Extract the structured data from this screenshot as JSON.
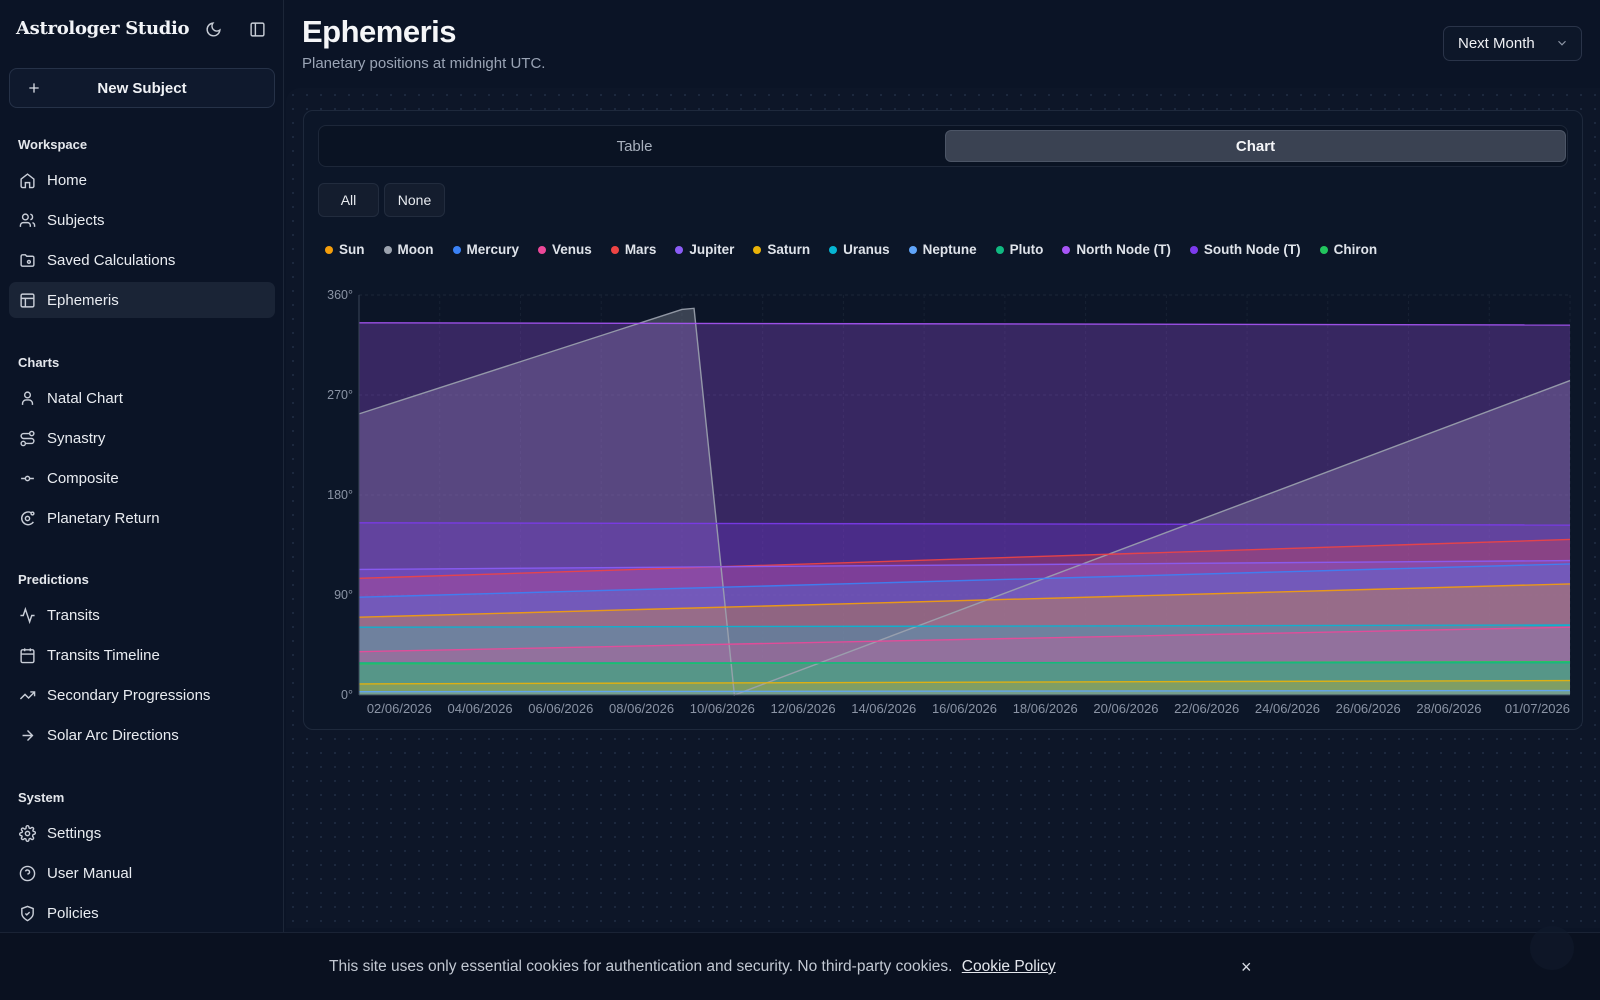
{
  "app": {
    "brand": "Astrologer Studio",
    "new_subject_label": "New Subject"
  },
  "sidebar": {
    "sections": [
      {
        "title": "Workspace",
        "items": [
          {
            "label": "Home",
            "icon": "home-icon"
          },
          {
            "label": "Subjects",
            "icon": "users-icon"
          },
          {
            "label": "Saved Calculations",
            "icon": "folder-icon"
          },
          {
            "label": "Ephemeris",
            "icon": "table-icon",
            "active": true
          }
        ]
      },
      {
        "title": "Charts",
        "items": [
          {
            "label": "Natal Chart",
            "icon": "user-icon"
          },
          {
            "label": "Synastry",
            "icon": "route-icon"
          },
          {
            "label": "Composite",
            "icon": "commit-icon"
          },
          {
            "label": "Planetary Return",
            "icon": "orbit-icon"
          }
        ]
      },
      {
        "title": "Predictions",
        "items": [
          {
            "label": "Transits",
            "icon": "activity-icon"
          },
          {
            "label": "Transits Timeline",
            "icon": "calendar-icon"
          },
          {
            "label": "Secondary Progressions",
            "icon": "trending-up-icon"
          },
          {
            "label": "Solar Arc Directions",
            "icon": "arrow-right-icon"
          }
        ]
      },
      {
        "title": "System",
        "items": [
          {
            "label": "Settings",
            "icon": "gear-icon"
          },
          {
            "label": "User Manual",
            "icon": "help-circle-icon"
          },
          {
            "label": "Policies",
            "icon": "shield-icon"
          }
        ]
      }
    ]
  },
  "header": {
    "title": "Ephemeris",
    "subtitle": "Planetary positions at midnight UTC.",
    "range_select": "Next Month"
  },
  "view_tabs": {
    "table": "Table",
    "chart": "Chart",
    "active": "Chart"
  },
  "filter_buttons": {
    "all": "All",
    "none": "None"
  },
  "chart_data": {
    "type": "area",
    "y_ticks": [
      "360°",
      "270°",
      "180°",
      "90°",
      "0°"
    ],
    "ylim": [
      0,
      360
    ],
    "x_tick_labels": [
      "02/06/2026",
      "04/06/2026",
      "06/06/2026",
      "08/06/2026",
      "10/06/2026",
      "12/06/2026",
      "14/06/2026",
      "16/06/2026",
      "18/06/2026",
      "20/06/2026",
      "22/06/2026",
      "24/06/2026",
      "26/06/2026",
      "28/06/2026",
      "01/07/2026"
    ],
    "x_range": [
      "01/06/2026",
      "01/07/2026"
    ],
    "grid": true,
    "series": [
      {
        "name": "Sun",
        "color": "#f59e0b",
        "start": 70,
        "end": 100
      },
      {
        "name": "Moon",
        "color": "#9ca3af",
        "points": [
          [
            0,
            253
          ],
          [
            8,
            347
          ],
          [
            8.3,
            348
          ],
          [
            9.3,
            0
          ],
          [
            30,
            283
          ]
        ]
      },
      {
        "name": "Mercury",
        "color": "#3b82f6",
        "start": 88,
        "end": 118
      },
      {
        "name": "Venus",
        "color": "#ec4899",
        "start": 39,
        "end": 61
      },
      {
        "name": "Mars",
        "color": "#ef4444",
        "start": 105,
        "end": 140
      },
      {
        "name": "Jupiter",
        "color": "#8b5cf6",
        "start": 113,
        "end": 121
      },
      {
        "name": "Saturn",
        "color": "#eab308",
        "start": 10,
        "end": 13
      },
      {
        "name": "Uranus",
        "color": "#06b6d4",
        "start": 61,
        "end": 63
      },
      {
        "name": "Neptune",
        "color": "#60a5fa",
        "start": 3,
        "end": 4
      },
      {
        "name": "Pluto",
        "color": "#10b981",
        "start": 29,
        "end": 29
      },
      {
        "name": "North Node (T)",
        "color": "#a855f7",
        "start": 335,
        "end": 333
      },
      {
        "name": "South Node (T)",
        "color": "#7c3aed",
        "start": 155,
        "end": 153
      },
      {
        "name": "Chiron",
        "color": "#22c55e",
        "start": 28,
        "end": 30
      }
    ]
  },
  "cookie_banner": {
    "text": "This site uses only essential cookies for authentication and security. No third-party cookies.",
    "link": "Cookie Policy",
    "close": "×"
  }
}
